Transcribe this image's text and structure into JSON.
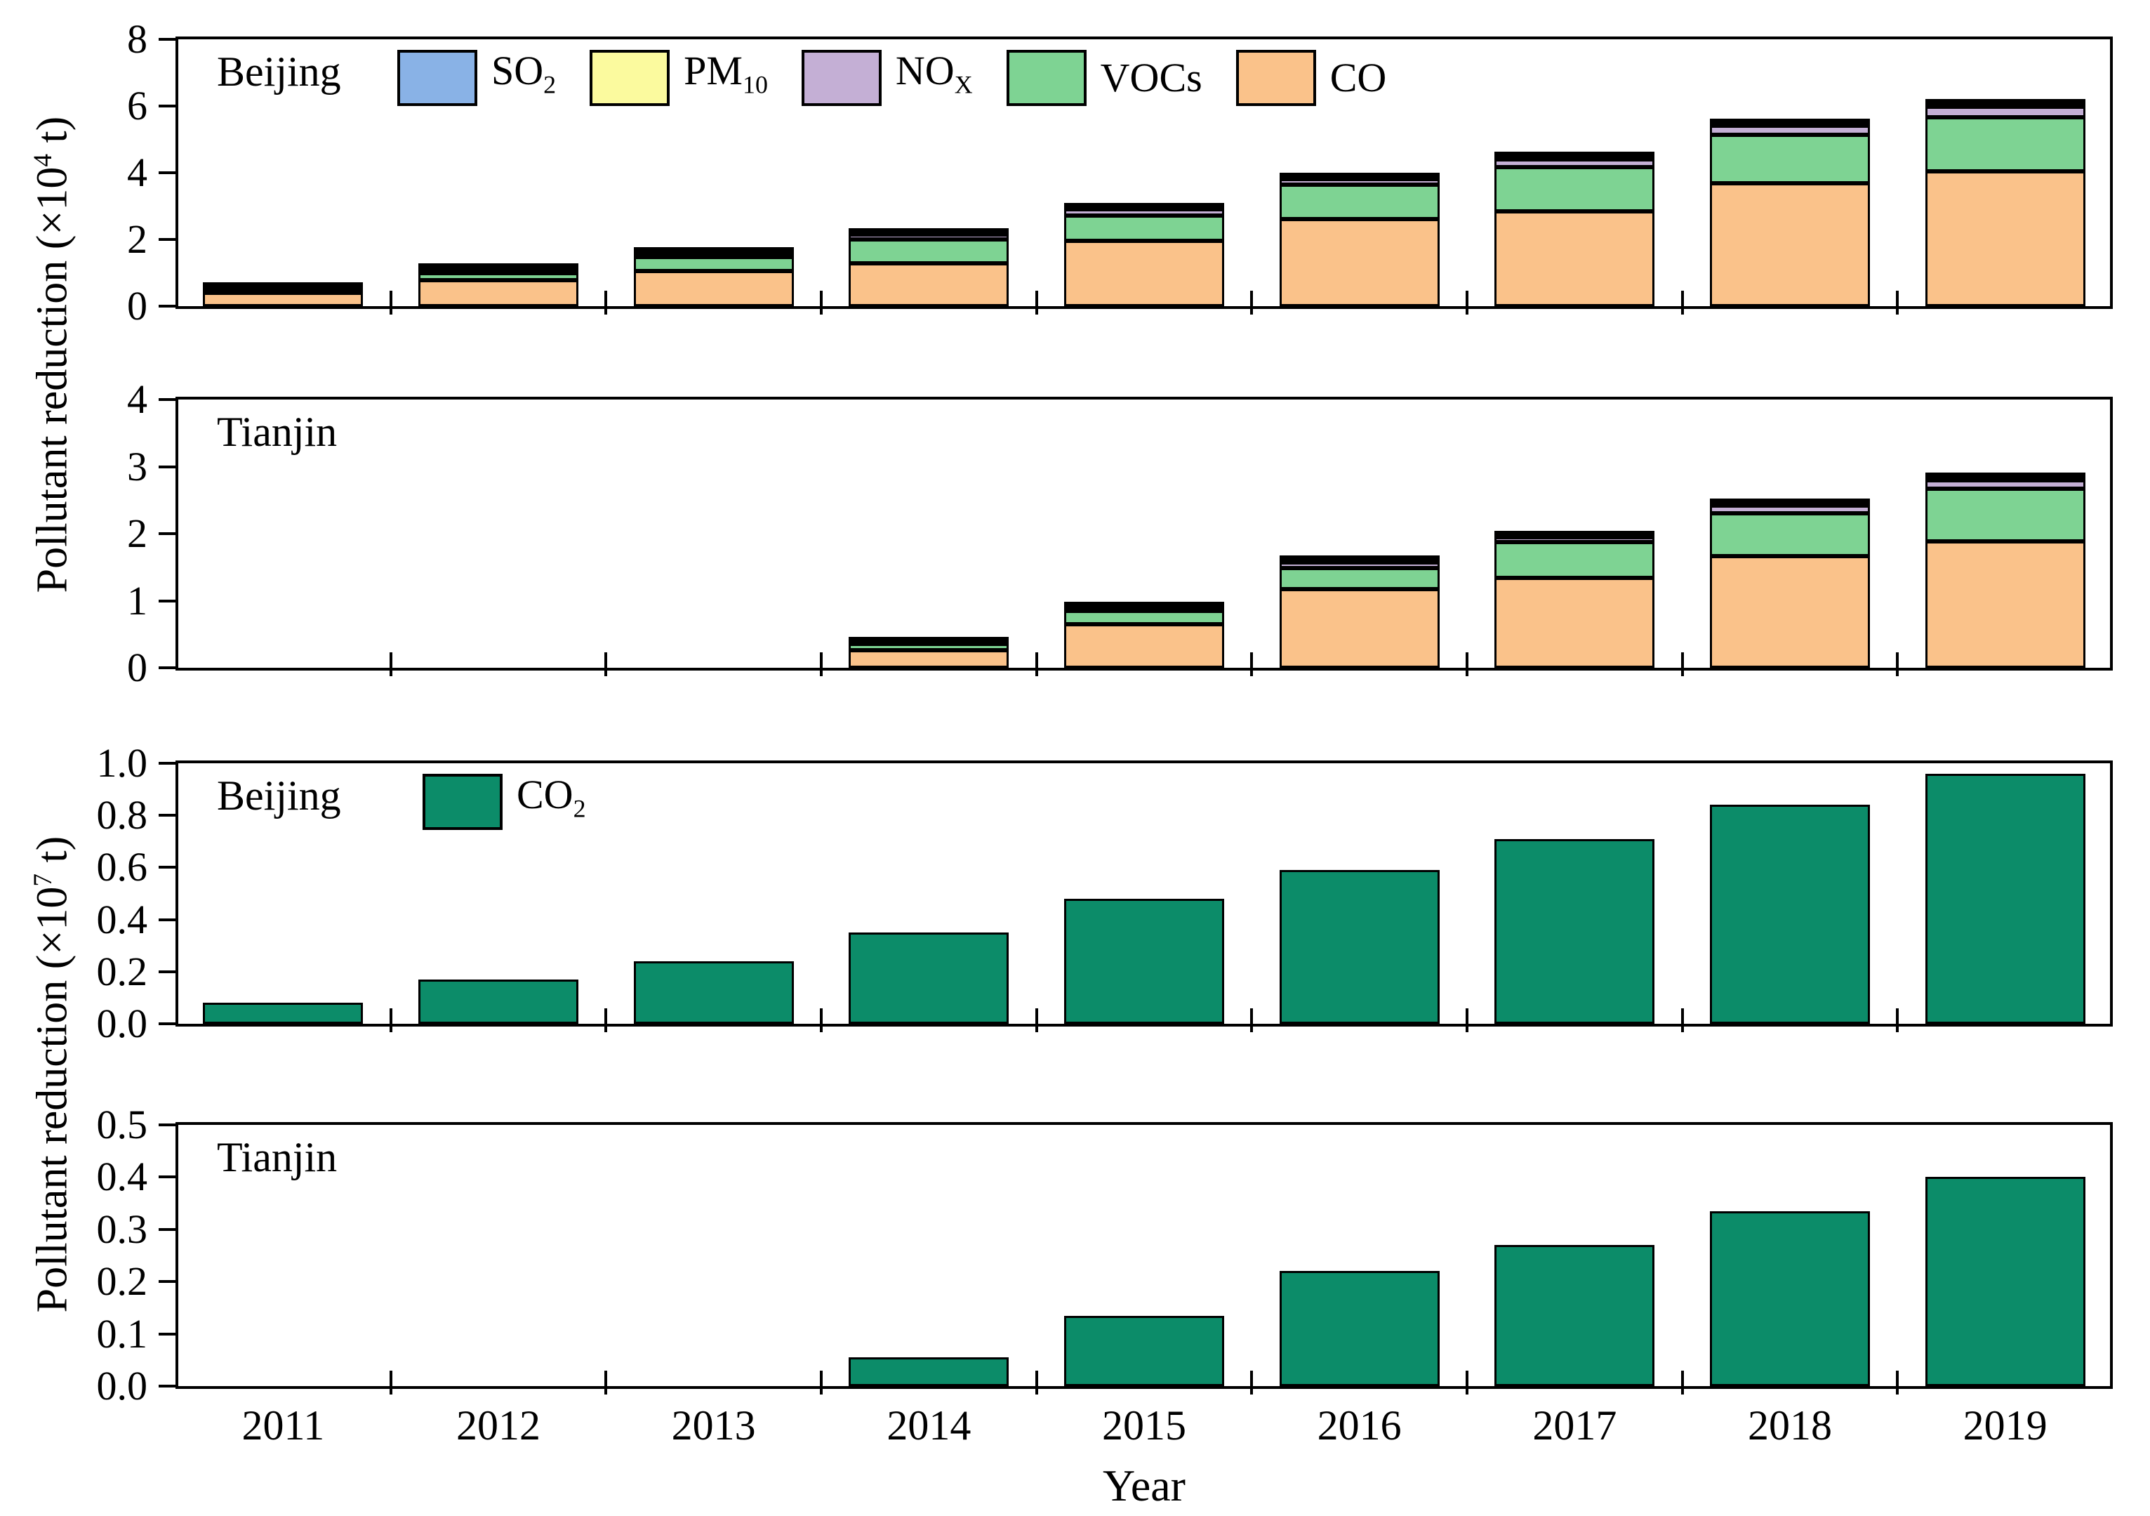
{
  "figure": {
    "x_axis_title": "Year",
    "years": [
      "2011",
      "2012",
      "2013",
      "2014",
      "2015",
      "2016",
      "2017",
      "2018",
      "2019"
    ],
    "y_axis_titles": [
      {
        "pre": "Pollutant reduction (×10",
        "sup": "4",
        "post": " t)"
      },
      {
        "pre": "Pollutant reduction (×10",
        "sup": "7",
        "post": " t)"
      }
    ]
  },
  "colors": {
    "SO2": "#89B2E6",
    "PM10": "#FBFA9E",
    "NOx": "#C4AFD5",
    "VOCs": "#7ED393",
    "CO": "#FAC28A",
    "CO2": "#0C8C69",
    "outline": "#000000"
  },
  "legend": {
    "pollutants": [
      {
        "id": "so2",
        "main": "SO",
        "sub": "2",
        "color": "#89B2E6"
      },
      {
        "id": "pm10",
        "main": "PM",
        "sub": "10",
        "color": "#FBFA9E"
      },
      {
        "id": "nox",
        "main": "NO",
        "sub": "X",
        "color": "#C4AFD5"
      },
      {
        "id": "vocs",
        "main": "VOCs",
        "sub": "",
        "color": "#7ED393"
      },
      {
        "id": "co",
        "main": "CO",
        "sub": "",
        "color": "#FAC28A"
      }
    ],
    "co2": {
      "id": "co2",
      "main": "CO",
      "sub": "2",
      "color": "#0C8C69"
    }
  },
  "chart_data": [
    {
      "id": "beijing-pollutants",
      "type": "bar",
      "stacked": true,
      "panel_label": "Beijing",
      "unit": "×10^4 t",
      "legend_kind": "pollutants",
      "categories": [
        "2011",
        "2012",
        "2013",
        "2014",
        "2015",
        "2016",
        "2017",
        "2018",
        "2019"
      ],
      "series": [
        {
          "name": "CO",
          "color": "#FAC28A",
          "values": [
            0.39,
            0.78,
            1.05,
            1.28,
            1.96,
            2.62,
            2.84,
            3.68,
            4.05
          ]
        },
        {
          "name": "VOCs",
          "color": "#7ED393",
          "values": [
            0.13,
            0.21,
            0.43,
            0.72,
            0.76,
            1.03,
            1.33,
            1.46,
            1.61
          ]
        },
        {
          "name": "NOx",
          "color": "#C4AFD5",
          "values": [
            0.05,
            0.11,
            0.11,
            0.15,
            0.18,
            0.16,
            0.24,
            0.27,
            0.32
          ]
        },
        {
          "name": "PM10",
          "color": "#FBFA9E",
          "values": [
            0.03,
            0.06,
            0.05,
            0.06,
            0.07,
            0.06,
            0.09,
            0.09,
            0.11
          ]
        },
        {
          "name": "SO2",
          "color": "#89B2E6",
          "values": [
            0.02,
            0.04,
            0.03,
            0.04,
            0.05,
            0.03,
            0.05,
            0.05,
            0.06
          ]
        }
      ],
      "ylim": [
        0,
        8
      ],
      "yticks": [
        0,
        2,
        4,
        6,
        8
      ],
      "ytick_labels": [
        "0",
        "2",
        "4",
        "6",
        "8"
      ],
      "grid": false,
      "legend_position": "top-inside"
    },
    {
      "id": "tianjin-pollutants",
      "type": "bar",
      "stacked": true,
      "panel_label": "Tianjin",
      "unit": "×10^4 t",
      "legend_kind": "none",
      "categories": [
        "2011",
        "2012",
        "2013",
        "2014",
        "2015",
        "2016",
        "2017",
        "2018",
        "2019"
      ],
      "series": [
        {
          "name": "CO",
          "color": "#FAC28A",
          "values": [
            0,
            0,
            0,
            0.26,
            0.65,
            1.17,
            1.34,
            1.67,
            1.88
          ]
        },
        {
          "name": "VOCs",
          "color": "#7ED393",
          "values": [
            0,
            0,
            0,
            0.1,
            0.2,
            0.32,
            0.53,
            0.63,
            0.79
          ]
        },
        {
          "name": "NOx",
          "color": "#C4AFD5",
          "values": [
            0,
            0,
            0,
            0.03,
            0.05,
            0.08,
            0.08,
            0.12,
            0.13
          ]
        },
        {
          "name": "PM10",
          "color": "#FBFA9E",
          "values": [
            0,
            0,
            0,
            0.01,
            0.02,
            0.04,
            0.03,
            0.04,
            0.05
          ]
        },
        {
          "name": "SO2",
          "color": "#89B2E6",
          "values": [
            0,
            0,
            0,
            0.01,
            0.02,
            0.02,
            0.02,
            0.03,
            0.03
          ]
        }
      ],
      "ylim": [
        0,
        4
      ],
      "yticks": [
        0,
        1,
        2,
        3,
        4
      ],
      "ytick_labels": [
        "0",
        "1",
        "2",
        "3",
        "4"
      ],
      "grid": false,
      "legend_position": "none"
    },
    {
      "id": "beijing-co2",
      "type": "bar",
      "stacked": false,
      "panel_label": "Beijing",
      "unit": "×10^7 t",
      "legend_kind": "co2",
      "categories": [
        "2011",
        "2012",
        "2013",
        "2014",
        "2015",
        "2016",
        "2017",
        "2018",
        "2019"
      ],
      "series": [
        {
          "name": "CO2",
          "color": "#0C8C69",
          "values": [
            0.08,
            0.17,
            0.24,
            0.35,
            0.48,
            0.59,
            0.71,
            0.84,
            0.96
          ]
        }
      ],
      "ylim": [
        0,
        1.0
      ],
      "yticks": [
        0,
        0.2,
        0.4,
        0.6,
        0.8,
        1.0
      ],
      "ytick_labels": [
        "0.0",
        "0.2",
        "0.4",
        "0.6",
        "0.8",
        "1.0"
      ],
      "grid": false,
      "legend_position": "top-inside"
    },
    {
      "id": "tianjin-co2",
      "type": "bar",
      "stacked": false,
      "panel_label": "Tianjin",
      "unit": "×10^7 t",
      "legend_kind": "none",
      "categories": [
        "2011",
        "2012",
        "2013",
        "2014",
        "2015",
        "2016",
        "2017",
        "2018",
        "2019"
      ],
      "series": [
        {
          "name": "CO2",
          "color": "#0C8C69",
          "values": [
            0,
            0,
            0,
            0.055,
            0.135,
            0.22,
            0.27,
            0.335,
            0.4
          ]
        }
      ],
      "ylim": [
        0,
        0.5
      ],
      "yticks": [
        0,
        0.1,
        0.2,
        0.3,
        0.4,
        0.5
      ],
      "ytick_labels": [
        "0.0",
        "0.1",
        "0.2",
        "0.3",
        "0.4",
        "0.5"
      ],
      "grid": false,
      "legend_position": "none"
    }
  ]
}
